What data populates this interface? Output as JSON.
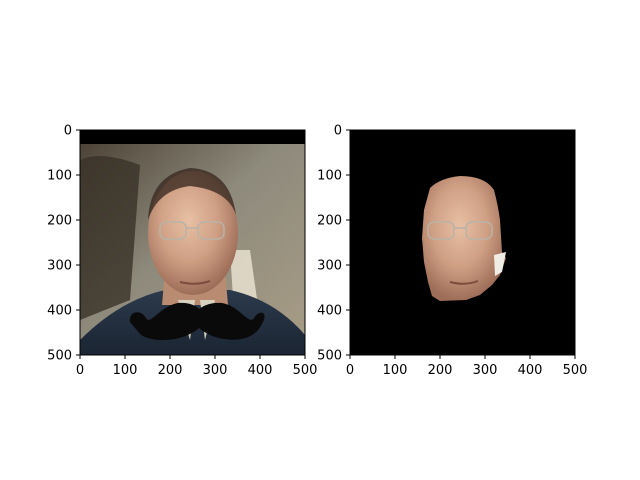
{
  "figure": {
    "background": "#ffffff"
  },
  "chart_data": [
    {
      "type": "image",
      "panel": "left",
      "content_description": "",
      "xlim": [
        0,
        500
      ],
      "ylim": [
        500,
        0
      ],
      "xticks": [
        0,
        100,
        200,
        300,
        400,
        500
      ],
      "yticks": [
        0,
        100,
        200,
        300,
        400,
        500
      ],
      "xtick_labels": [
        "0",
        "100",
        "200",
        "300",
        "400",
        "500"
      ],
      "ytick_labels": [
        "0",
        "100",
        "200",
        "300",
        "400",
        "500"
      ],
      "title": "",
      "xlabel": "",
      "ylabel": "",
      "colors": {
        "background": "#000000",
        "mustache": "#0a0a0a"
      }
    },
    {
      "type": "image",
      "panel": "right",
      "content_description": "",
      "xlim": [
        0,
        500
      ],
      "ylim": [
        500,
        0
      ],
      "xticks": [
        0,
        100,
        200,
        300,
        400,
        500
      ],
      "yticks": [
        0,
        100,
        200,
        300,
        400,
        500
      ],
      "xtick_labels": [
        "0",
        "100",
        "200",
        "300",
        "400",
        "500"
      ],
      "ytick_labels": [
        "0",
        "100",
        "200",
        "300",
        "400",
        "500"
      ],
      "title": "",
      "xlabel": "",
      "ylabel": "",
      "colors": {
        "background": "#000000"
      }
    }
  ]
}
